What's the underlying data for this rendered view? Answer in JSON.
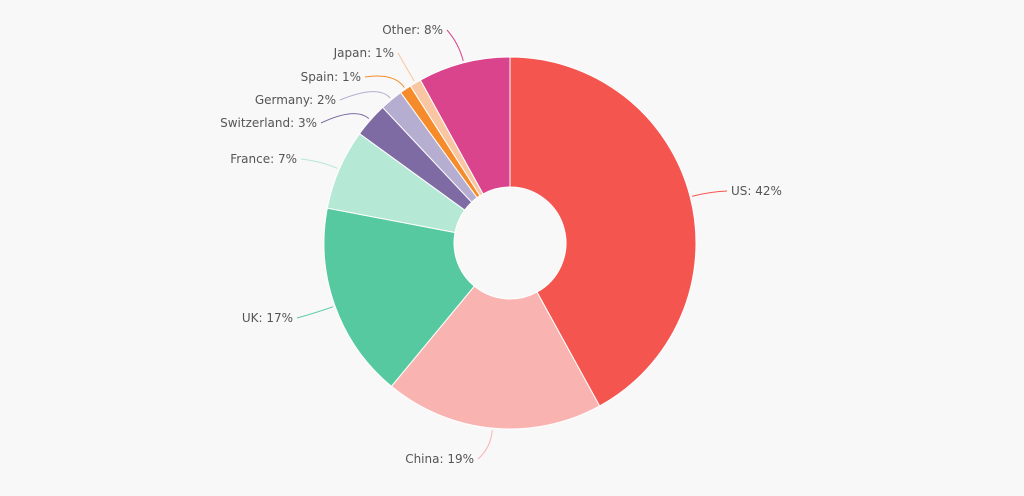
{
  "chart_data": {
    "type": "pie",
    "donut": true,
    "start": "12 o'clock, clockwise",
    "slices": [
      {
        "label": "US",
        "value": 42,
        "display": "US: 42%",
        "color": "#f5554f"
      },
      {
        "label": "China",
        "value": 19,
        "display": "China: 19%",
        "color": "#f9b3b0"
      },
      {
        "label": "UK",
        "value": 17,
        "display": "UK: 17%",
        "color": "#57c9a0"
      },
      {
        "label": "France",
        "value": 7,
        "display": "France: 7%",
        "color": "#b6e8d6"
      },
      {
        "label": "Switzerland",
        "value": 3,
        "display": "Switzerland: 3%",
        "color": "#7f6ba4"
      },
      {
        "label": "Germany",
        "value": 2,
        "display": "Germany: 2%",
        "color": "#b6aed0"
      },
      {
        "label": "Spain",
        "value": 1,
        "display": "Spain: 1%",
        "color": "#f58b2a"
      },
      {
        "label": "Japan",
        "value": 1,
        "display": "Japan: 1%",
        "color": "#f9c6a3"
      },
      {
        "label": "Other",
        "value": 8,
        "display": "Other: 8%",
        "color": "#d9448d"
      }
    ]
  }
}
